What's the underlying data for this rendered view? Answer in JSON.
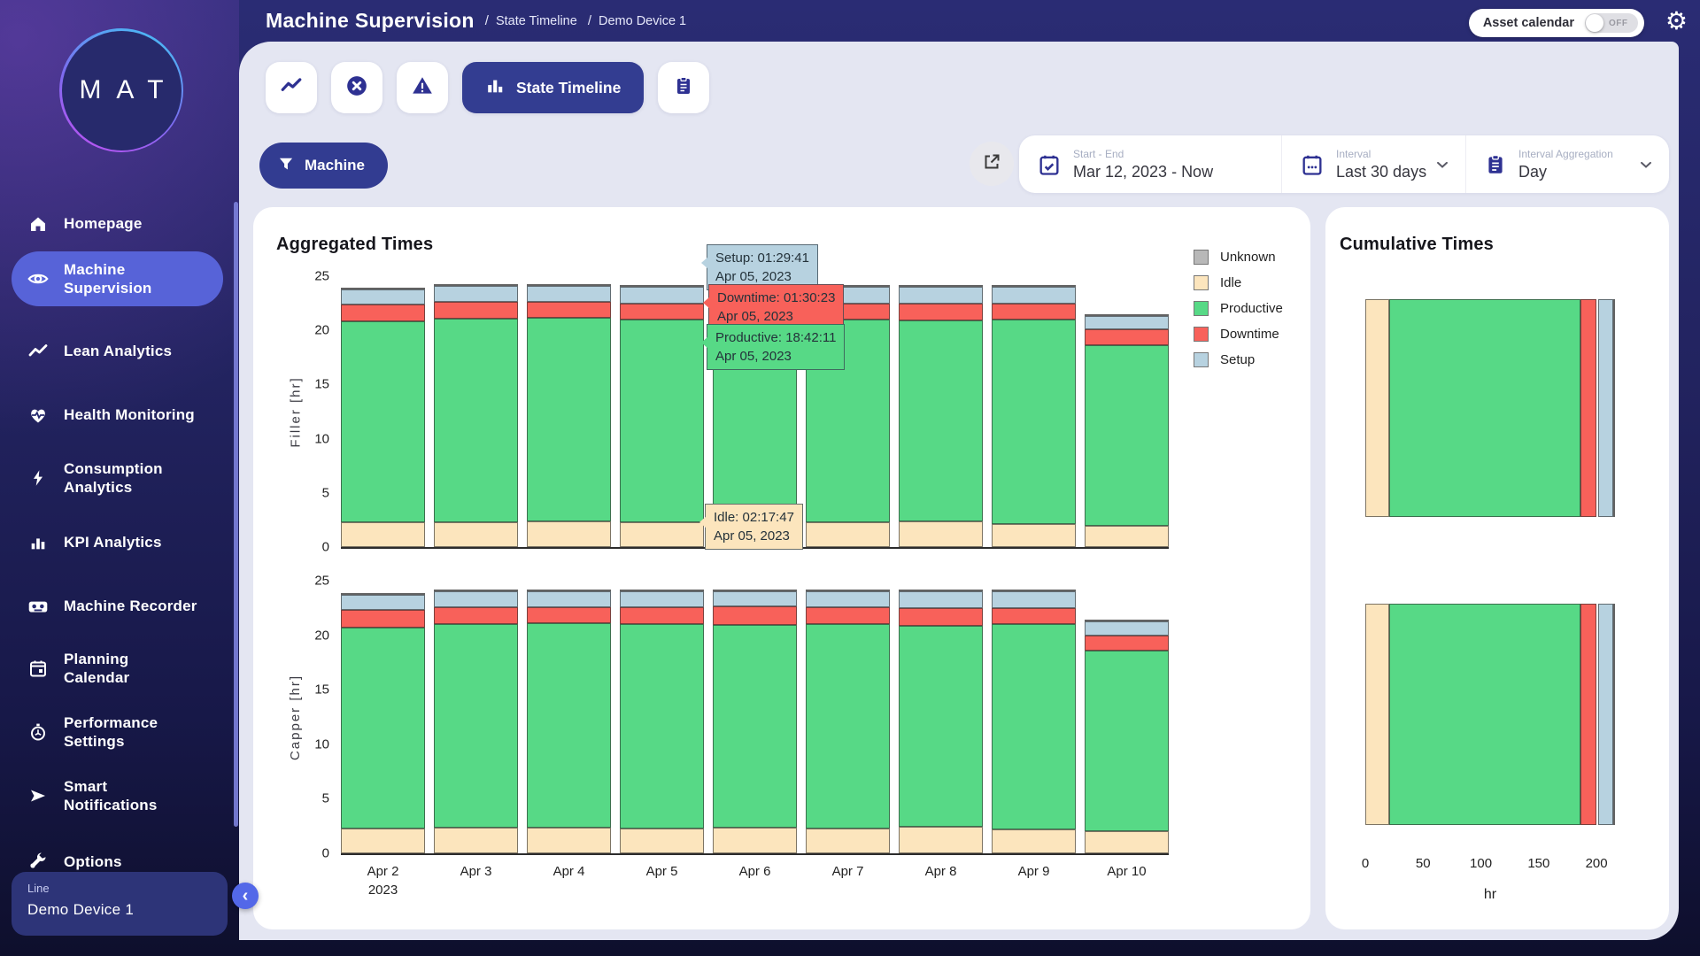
{
  "logo": {
    "text": "MAT"
  },
  "header": {
    "title": "Machine Supervision",
    "breadcrumb_separator": "/",
    "breadcrumb": [
      "State Timeline",
      "Demo Device 1"
    ],
    "asset_calendar_label": "Asset calendar",
    "asset_calendar_state": "OFF"
  },
  "sidebar": {
    "items": [
      {
        "label": "Homepage",
        "icon": "home-icon",
        "active": false
      },
      {
        "label": "Machine Supervision",
        "icon": "eye-icon",
        "active": true
      },
      {
        "label": "Lean Analytics",
        "icon": "trend-icon",
        "active": false
      },
      {
        "label": "Health Monitoring",
        "icon": "heart-pulse-icon",
        "active": false
      },
      {
        "label": "Consumption Analytics",
        "icon": "bolt-icon",
        "active": false
      },
      {
        "label": "KPI Analytics",
        "icon": "bar-chart-icon",
        "active": false
      },
      {
        "label": "Machine Recorder",
        "icon": "cassette-icon",
        "active": false
      },
      {
        "label": "Planning Calendar",
        "icon": "calendar-icon",
        "active": false
      },
      {
        "label": "Performance Settings",
        "icon": "stopwatch-icon",
        "active": false
      },
      {
        "label": "Smart Notifications",
        "icon": "send-icon",
        "active": false
      },
      {
        "label": "Options",
        "icon": "wrench-icon",
        "active": false
      }
    ],
    "footer": {
      "label": "Line",
      "value": "Demo Device 1"
    }
  },
  "tabs": {
    "items": [
      {
        "icon": "line-chart-icon",
        "label": "",
        "active": false
      },
      {
        "icon": "x-circle-icon",
        "label": "",
        "active": false
      },
      {
        "icon": "warning-triangle-icon",
        "label": "",
        "active": false
      },
      {
        "icon": "bar-chart-icon",
        "label": "State Timeline",
        "active": true
      },
      {
        "icon": "clipboard-icon",
        "label": "",
        "active": false
      }
    ]
  },
  "filters": {
    "machine_button": "Machine",
    "export_icon": "open-in-new-icon",
    "start_end": {
      "label": "Start - End",
      "value": "Mar 12, 2023 - Now",
      "icon": "calendar-check-icon"
    },
    "interval": {
      "label": "Interval",
      "value": "Last 30 days",
      "icon": "calendar-dots-icon"
    },
    "aggregation": {
      "label": "Interval Aggregation",
      "value": "Day",
      "icon": "clipboard-icon"
    }
  },
  "aggregated": {
    "title": "Aggregated Times",
    "legend": [
      {
        "label": "Unknown",
        "color_key": "unknown"
      },
      {
        "label": "Idle",
        "color_key": "idle"
      },
      {
        "label": "Productive",
        "color_key": "productive"
      },
      {
        "label": "Downtime",
        "color_key": "downtime"
      },
      {
        "label": "Setup",
        "color_key": "setup"
      }
    ],
    "tooltips": [
      {
        "line1": "Setup: 01:29:41",
        "line2": "Apr 05, 2023",
        "color_key": "setup"
      },
      {
        "line1": "Downtime: 01:30:23",
        "line2": "Apr 05, 2023",
        "color_key": "downtime"
      },
      {
        "line1": "Productive: 18:42:11",
        "line2": "Apr 05, 2023",
        "color_key": "productive"
      },
      {
        "line1": "Idle: 02:17:47",
        "line2": "Apr 05, 2023",
        "color_key": "idle"
      }
    ]
  },
  "cumulative": {
    "title": "Cumulative Times"
  },
  "colors": {
    "unknown": "#b8b8b8",
    "idle": "#fce5bd",
    "productive": "#57d986",
    "downtime": "#f8615a",
    "setup": "#b7d2e0",
    "accent_blue": "#333d91",
    "active_nav": "#5763d8",
    "panel_bg": "#e4e6f2",
    "dark_navy": "#22235f"
  },
  "chart_data": [
    {
      "type": "bar",
      "machine": "Filler",
      "ylabel": "Filler [hr]",
      "ylim": [
        0,
        25
      ],
      "yticks": [
        0,
        5,
        10,
        15,
        20,
        25
      ],
      "grid": false,
      "show_x_labels": false,
      "categories": [
        "Apr 2\n2023",
        "Apr 3",
        "Apr 4",
        "Apr 5",
        "Apr 6",
        "Apr 7",
        "Apr 8",
        "Apr 9",
        "Apr 10"
      ],
      "series": [
        {
          "name": "Idle",
          "color_key": "idle",
          "values": [
            2.3,
            2.3,
            2.35,
            2.3,
            2.3,
            2.3,
            2.4,
            2.1,
            2.0
          ]
        },
        {
          "name": "Productive",
          "color_key": "productive",
          "values": [
            18.5,
            18.8,
            18.85,
            18.7,
            18.7,
            18.7,
            18.5,
            18.9,
            16.6
          ]
        },
        {
          "name": "Downtime",
          "color_key": "downtime",
          "values": [
            1.6,
            1.5,
            1.4,
            1.5,
            1.55,
            1.5,
            1.55,
            1.5,
            1.5
          ]
        },
        {
          "name": "Setup",
          "color_key": "setup",
          "values": [
            1.4,
            1.5,
            1.5,
            1.5,
            1.45,
            1.5,
            1.55,
            1.5,
            1.2
          ]
        },
        {
          "name": "Unknown",
          "color_key": "unknown",
          "values": [
            0.1,
            0.1,
            0.1,
            0.1,
            0.1,
            0.1,
            0.1,
            0.1,
            0.1
          ]
        }
      ]
    },
    {
      "type": "bar",
      "machine": "Capper",
      "ylabel": "Capper [hr]",
      "ylim": [
        0,
        25
      ],
      "yticks": [
        0,
        5,
        10,
        15,
        20,
        25
      ],
      "grid": false,
      "show_x_labels": true,
      "categories": [
        "Apr 2\n2023",
        "Apr 3",
        "Apr 4",
        "Apr 5",
        "Apr 6",
        "Apr 7",
        "Apr 8",
        "Apr 9",
        "Apr 10"
      ],
      "series": [
        {
          "name": "Idle",
          "color_key": "idle",
          "values": [
            2.3,
            2.35,
            2.35,
            2.3,
            2.35,
            2.3,
            2.45,
            2.2,
            2.0
          ]
        },
        {
          "name": "Productive",
          "color_key": "productive",
          "values": [
            18.4,
            18.65,
            18.75,
            18.7,
            18.6,
            18.7,
            18.45,
            18.8,
            16.55
          ]
        },
        {
          "name": "Downtime",
          "color_key": "downtime",
          "values": [
            1.6,
            1.6,
            1.45,
            1.6,
            1.7,
            1.55,
            1.6,
            1.5,
            1.45
          ]
        },
        {
          "name": "Setup",
          "color_key": "setup",
          "values": [
            1.4,
            1.45,
            1.5,
            1.45,
            1.4,
            1.5,
            1.5,
            1.5,
            1.3
          ]
        },
        {
          "name": "Unknown",
          "color_key": "unknown",
          "values": [
            0.1,
            0.1,
            0.1,
            0.1,
            0.1,
            0.1,
            0.1,
            0.1,
            0.1
          ]
        }
      ]
    },
    {
      "type": "bar",
      "orientation": "horizontal",
      "title": "Cumulative Times",
      "xlabel": "hr",
      "xlim": [
        0,
        216
      ],
      "xticks": [
        0,
        50,
        100,
        150,
        200
      ],
      "rows": [
        {
          "machine": "Filler",
          "segments": [
            {
              "name": "Idle",
              "color_key": "idle",
              "hr": 20.4
            },
            {
              "name": "Productive",
              "color_key": "productive",
              "hr": 166.3
            },
            {
              "name": "Downtime",
              "color_key": "downtime",
              "hr": 13.6
            },
            {
              "name": "Setup",
              "color_key": "setup",
              "hr": 13.1
            },
            {
              "name": "Unknown",
              "color_key": "unknown",
              "hr": 0.9
            }
          ]
        },
        {
          "machine": "Capper",
          "segments": [
            {
              "name": "Idle",
              "color_key": "idle",
              "hr": 20.7
            },
            {
              "name": "Productive",
              "color_key": "productive",
              "hr": 165.6
            },
            {
              "name": "Downtime",
              "color_key": "downtime",
              "hr": 14.1
            },
            {
              "name": "Setup",
              "color_key": "setup",
              "hr": 13.0
            },
            {
              "name": "Unknown",
              "color_key": "unknown",
              "hr": 0.9
            }
          ]
        }
      ]
    }
  ]
}
